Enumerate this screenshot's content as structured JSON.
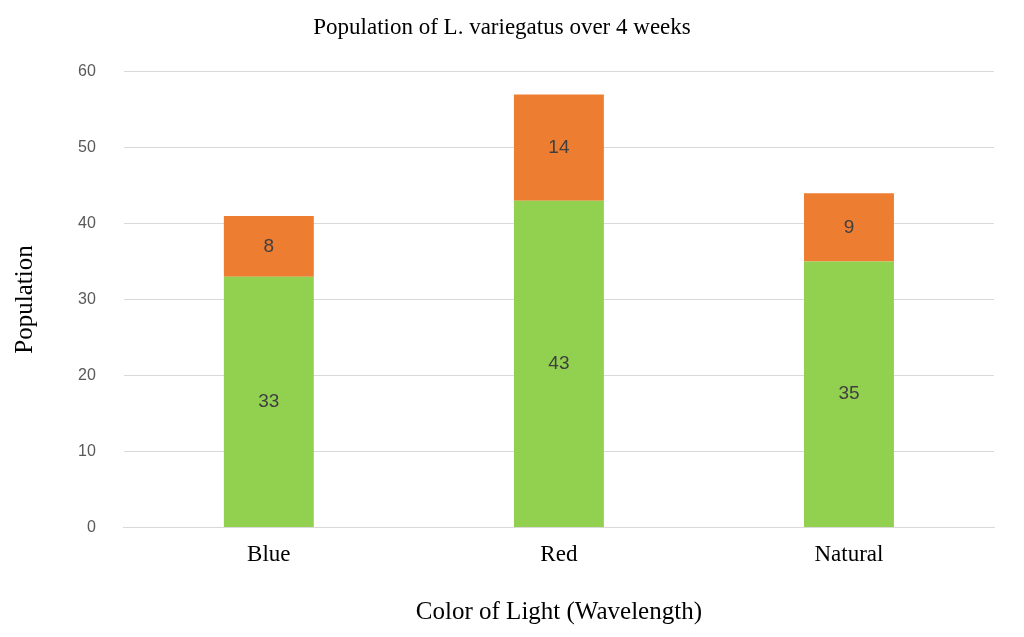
{
  "chart_data": {
    "type": "bar",
    "title": "Population of L. variegatus over 4 weeks",
    "x_label": "Color of Light (Wavelength)",
    "y_label": "Population",
    "categories": [
      "Blue",
      "Red",
      "Natural"
    ],
    "series": [
      {
        "color": "#92d050",
        "values": [
          33,
          43,
          35
        ]
      },
      {
        "color": "#ed7d31",
        "values": [
          8,
          14,
          9
        ]
      }
    ],
    "stacked": true,
    "data_labels": true,
    "grid": true,
    "ylim": [
      0,
      60
    ],
    "yticks": [
      0,
      10,
      20,
      30,
      40,
      50,
      60
    ]
  }
}
